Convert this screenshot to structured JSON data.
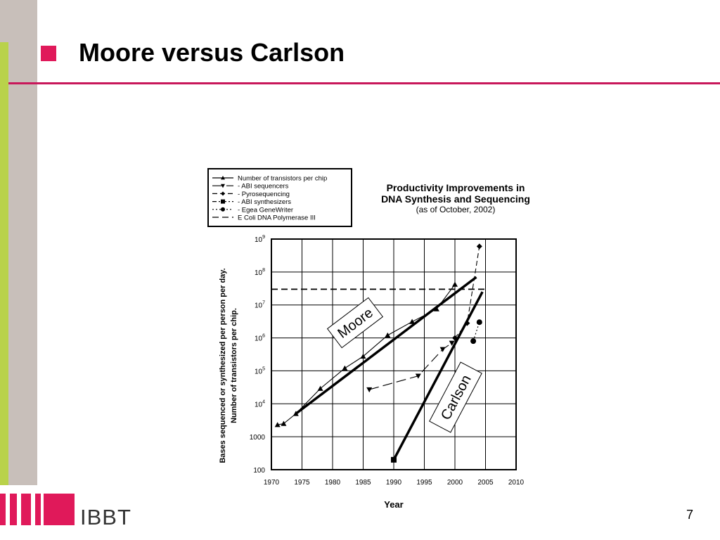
{
  "slide": {
    "title": "Moore versus Carlson",
    "page_number": "7",
    "logo_text": "IBBT",
    "accent_color": "#e0195a",
    "rule_color": "#c8175a",
    "sidebar_grey": "#c8bfba",
    "sidebar_green": "#b9d24a"
  },
  "chart_data": {
    "type": "line",
    "title": "Productivity Improvements in DNA Synthesis and Sequencing",
    "subtitle": "(as of October, 2002)",
    "xlabel": "Year",
    "ylabel_line1": "Bases sequenced or synthesized per person per day.",
    "ylabel_line2": "Number of transistors per chip.",
    "x_ticks": [
      "1970",
      "1975",
      "1980",
      "1985",
      "1990",
      "1995",
      "2000",
      "2005",
      "2010"
    ],
    "y_ticks": [
      {
        "value": 100,
        "label": "100"
      },
      {
        "value": 1000,
        "label": "1000"
      },
      {
        "value": 10000,
        "label": "10",
        "exp": "4"
      },
      {
        "value": 100000,
        "label": "10",
        "exp": "5"
      },
      {
        "value": 1000000,
        "label": "10",
        "exp": "6"
      },
      {
        "value": 10000000,
        "label": "10",
        "exp": "7"
      },
      {
        "value": 100000000,
        "label": "10",
        "exp": "8"
      },
      {
        "value": 1000000000,
        "label": "10",
        "exp": "9"
      }
    ],
    "xlim": [
      1970,
      2010
    ],
    "ylim": [
      100,
      1000000000
    ],
    "yscale": "log",
    "grid": true,
    "legend_position": "top-left",
    "series": [
      {
        "name": "Number of transistors per chip",
        "marker": "triangle-up",
        "dash": "solid",
        "x": [
          1971,
          1972,
          1974,
          1978,
          1982,
          1985,
          1989,
          1993,
          1997,
          2000
        ],
        "y": [
          2300,
          2500,
          5000,
          29000,
          120000,
          275000,
          1200000,
          3100000,
          7500000,
          42000000
        ]
      },
      {
        "name": "ABI sequencers",
        "marker": "triangle-down",
        "dash": "long-dash",
        "x": [
          1986,
          1994,
          1998,
          1999.5
        ],
        "y": [
          27000,
          70000,
          450000,
          700000
        ]
      },
      {
        "name": "Pyrosequencing",
        "marker": "diamond",
        "dash": "dash",
        "x": [
          2000,
          2002,
          2004
        ],
        "y": [
          1000000,
          2800000,
          600000000
        ]
      },
      {
        "name": "ABI synthesizers",
        "marker": "square",
        "dash": "dash-dot",
        "x": [
          1990
        ],
        "y": [
          200
        ]
      },
      {
        "name": "Egea GeneWriter",
        "marker": "circle",
        "dash": "dot",
        "x": [
          2003,
          2004
        ],
        "y": [
          800000,
          3000000
        ]
      },
      {
        "name": "E Coli DNA Polymerase III",
        "marker": "none",
        "dash": "heavy-dash",
        "x": [
          1970,
          2005
        ],
        "y": [
          30000000,
          30000000
        ]
      }
    ],
    "annotations": [
      {
        "label": "Moore",
        "x1": 1974,
        "y1": 5000,
        "x2": 2003.5,
        "y2": 70000000
      },
      {
        "label": "Carlson",
        "x1": 1990,
        "y1": 200,
        "x2": 2004.5,
        "y2": 25000000
      }
    ]
  }
}
